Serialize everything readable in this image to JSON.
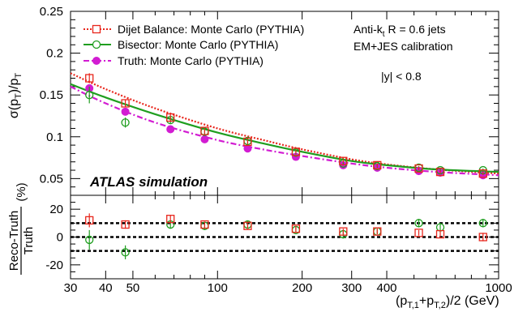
{
  "chart_data": {
    "type": "scatter",
    "xlabel_main": "(p",
    "xlabel_sub1": "T,1",
    "xlabel_plus": "+p",
    "xlabel_sub2": "T,2",
    "xlabel_tail": ")/2 (GeV)",
    "ylabel_top_a": "σ(p",
    "ylabel_top_b": "T",
    "ylabel_top_c": ")/p",
    "ylabel_top_d": "T",
    "ylabel_bottom_num": "Reco-Truth",
    "ylabel_bottom_den": "Truth",
    "ylabel_bottom_unit": "(%)",
    "xscale": "log",
    "xlim": [
      30,
      1000
    ],
    "x_ticks": [
      30,
      40,
      50,
      100,
      200,
      300,
      400,
      1000
    ],
    "x_tick_labels": [
      "30",
      "40",
      "50",
      "100",
      "200",
      "300",
      "400",
      "1000"
    ],
    "top_ylim": [
      0.03,
      0.25
    ],
    "top_y_ticks": [
      0.05,
      0.1,
      0.15,
      0.2,
      0.25
    ],
    "top_y_tick_labels": [
      "0.05",
      "0.1",
      "0.15",
      "0.2",
      "0.25"
    ],
    "bottom_ylim": [
      -30,
      30
    ],
    "bottom_y_ticks": [
      -20,
      0,
      20
    ],
    "bottom_y_tick_labels": [
      "-20",
      "0",
      "20"
    ],
    "reference_lines": [
      -10,
      0,
      10
    ],
    "annotations": {
      "jets_a": "Anti-k",
      "jets_sub": "t",
      "jets_b": " R = 0.6 jets",
      "calibration": "EM+JES calibration",
      "rapidity": "|y| < 0.8",
      "atlas": "ATLAS simulation"
    },
    "legend_position": "top-left",
    "series": [
      {
        "name": "Dijet Balance: Monte Carlo (PYTHIA)",
        "color": "#e8261c",
        "marker": "open-square",
        "line": "dotted",
        "x": [
          35,
          47,
          68,
          90,
          128,
          190,
          280,
          370,
          520,
          620,
          880
        ],
        "y": [
          0.17,
          0.14,
          0.123,
          0.107,
          0.094,
          0.082,
          0.071,
          0.066,
          0.062,
          0.058,
          0.056
        ],
        "yerr": [
          0.006,
          0.004,
          0.004,
          0.003,
          0.003,
          0.002,
          0.002,
          0.002,
          0.002,
          0.002,
          0.002
        ],
        "fit_x": [
          30,
          40,
          60,
          100,
          150,
          200,
          300,
          400,
          600,
          1000
        ],
        "fit_y": [
          0.176,
          0.157,
          0.134,
          0.11,
          0.095,
          0.085,
          0.073,
          0.067,
          0.061,
          0.056
        ],
        "ratio": [
          12,
          9,
          13,
          9,
          8,
          6,
          4,
          4,
          3,
          2,
          0
        ],
        "ratio_err": [
          5,
          3,
          3,
          2,
          2,
          2,
          2,
          2,
          2,
          2,
          3
        ]
      },
      {
        "name": "Bisector: Monte Carlo (PYTHIA)",
        "color": "#1f9e1f",
        "marker": "open-circle",
        "line": "solid",
        "x": [
          35,
          47,
          68,
          90,
          128,
          190,
          280,
          370,
          520,
          620,
          880
        ],
        "y": [
          0.15,
          0.117,
          0.12,
          0.106,
          0.095,
          0.081,
          0.068,
          0.065,
          0.063,
          0.06,
          0.06
        ],
        "yerr": [
          0.01,
          0.006,
          0.004,
          0.003,
          0.003,
          0.002,
          0.002,
          0.002,
          0.002,
          0.002,
          0.002
        ],
        "fit_x": [
          30,
          40,
          60,
          100,
          150,
          200,
          300,
          400,
          600,
          1000
        ],
        "fit_y": [
          0.163,
          0.147,
          0.127,
          0.105,
          0.091,
          0.082,
          0.071,
          0.066,
          0.061,
          0.058
        ],
        "ratio": [
          -2,
          -11,
          9,
          8,
          9,
          5,
          2,
          4,
          10,
          7,
          10
        ],
        "ratio_err": [
          7,
          5,
          3,
          3,
          3,
          2,
          3,
          2,
          3,
          3,
          3
        ]
      },
      {
        "name": "Truth: Monte Carlo (PYTHIA)",
        "color": "#d21cd2",
        "marker": "filled-circle",
        "line": "dash-dot",
        "x": [
          35,
          47,
          68,
          90,
          128,
          190,
          280,
          370,
          520,
          620,
          880
        ],
        "y": [
          0.158,
          0.13,
          0.109,
          0.097,
          0.086,
          0.076,
          0.066,
          0.063,
          0.059,
          0.057,
          0.054
        ],
        "yerr": [
          0.002,
          0.002,
          0.002,
          0.002,
          0.001,
          0.001,
          0.001,
          0.001,
          0.001,
          0.001,
          0.001
        ],
        "fit_x": [
          30,
          40,
          60,
          100,
          150,
          200,
          300,
          400,
          600,
          1000
        ],
        "fit_y": [
          0.16,
          0.14,
          0.117,
          0.096,
          0.084,
          0.077,
          0.068,
          0.063,
          0.058,
          0.054
        ]
      }
    ]
  }
}
